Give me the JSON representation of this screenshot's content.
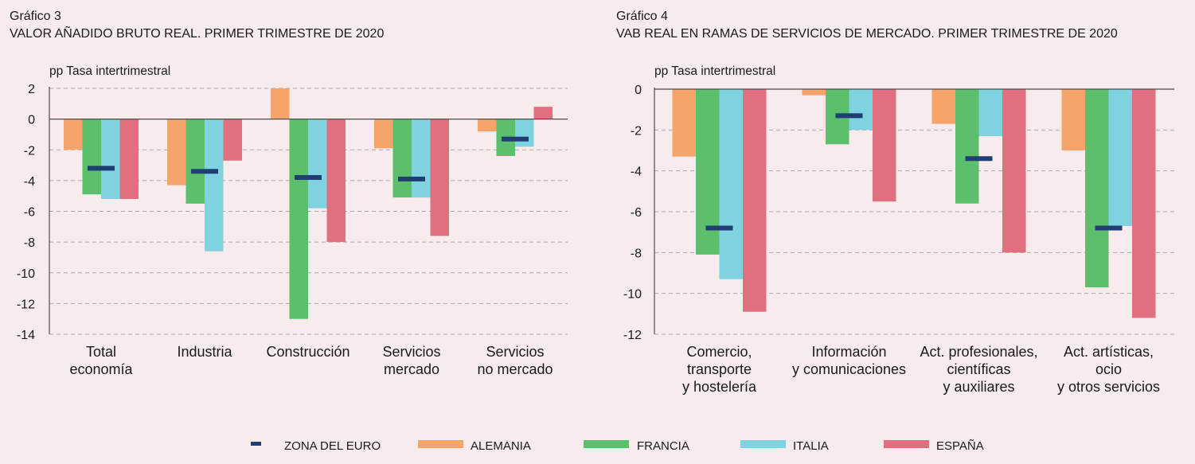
{
  "colors": {
    "zona_euro": "#1f3f73",
    "alemania": "#f7a46a",
    "francia": "#5cbf6c",
    "italia": "#7fd2df",
    "espana": "#e06f80",
    "grid": "#aaaaaa",
    "axis": "#4d4d4d"
  },
  "legend": {
    "items": [
      {
        "key": "zona_euro",
        "label": "ZONA DEL EURO",
        "kind": "marker"
      },
      {
        "key": "alemania",
        "label": "ALEMANIA",
        "kind": "bar"
      },
      {
        "key": "francia",
        "label": "FRANCIA",
        "kind": "bar"
      },
      {
        "key": "italia",
        "label": "ITALIA",
        "kind": "bar"
      },
      {
        "key": "espana",
        "label": "ESPAÑA",
        "kind": "bar"
      }
    ]
  },
  "chart_data": [
    {
      "type": "bar",
      "figure_label": "Gráfico 3",
      "title": "VALOR AÑADIDO BRUTO REAL. PRIMER TRIMESTRE DE 2020",
      "ylabel": "pp Tasa intertrimestral",
      "ylim": [
        -14,
        2
      ],
      "yticks": [
        2,
        0,
        -2,
        -4,
        -6,
        -8,
        -10,
        -12,
        -14
      ],
      "grid": true,
      "categories": [
        [
          "Total",
          "economía"
        ],
        [
          "Industria"
        ],
        [
          "Construcción"
        ],
        [
          "Servicios",
          "mercado"
        ],
        [
          "Servicios",
          "no mercado"
        ]
      ],
      "series": [
        {
          "name": "ALEMANIA",
          "key": "alemania",
          "values": [
            -2.0,
            -4.3,
            2.0,
            -1.9,
            -0.8
          ]
        },
        {
          "name": "FRANCIA",
          "key": "francia",
          "values": [
            -4.9,
            -5.5,
            -13.0,
            -5.1,
            -2.4
          ]
        },
        {
          "name": "ITALIA",
          "key": "italia",
          "values": [
            -5.2,
            -8.6,
            -5.8,
            -5.1,
            -1.8
          ]
        },
        {
          "name": "ESPAÑA",
          "key": "espana",
          "values": [
            -5.2,
            -2.7,
            -8.0,
            -7.6,
            0.8
          ]
        }
      ],
      "markers": {
        "name": "ZONA DEL EURO",
        "key": "zona_euro",
        "values": [
          -3.2,
          -3.4,
          -3.8,
          -3.9,
          -1.3
        ]
      }
    },
    {
      "type": "bar",
      "figure_label": "Gráfico 4",
      "title": "VAB REAL EN RAMAS DE SERVICIOS DE MERCADO. PRIMER TRIMESTRE DE 2020",
      "ylabel": "pp Tasa intertrimestral",
      "ylim": [
        -12,
        0
      ],
      "yticks": [
        0,
        -2,
        -4,
        -6,
        -8,
        -10,
        -12
      ],
      "grid": true,
      "categories": [
        [
          "Comercio,",
          "transporte",
          "y hostelería"
        ],
        [
          "Información",
          "y comunicaciones"
        ],
        [
          "Act. profesionales,",
          "científicas",
          "y auxiliares"
        ],
        [
          "Act. artísticas,",
          "ocio",
          "y otros servicios"
        ]
      ],
      "series": [
        {
          "name": "ALEMANIA",
          "key": "alemania",
          "values": [
            -3.3,
            -0.3,
            -1.7,
            -3.0
          ]
        },
        {
          "name": "FRANCIA",
          "key": "francia",
          "values": [
            -8.1,
            -2.7,
            -5.6,
            -9.7
          ]
        },
        {
          "name": "ITALIA",
          "key": "italia",
          "values": [
            -9.3,
            -2.0,
            -2.3,
            -6.7
          ]
        },
        {
          "name": "ESPAÑA",
          "key": "espana",
          "values": [
            -10.9,
            -5.5,
            -8.0,
            -11.2
          ]
        }
      ],
      "markers": {
        "name": "ZONA DEL EURO",
        "key": "zona_euro",
        "values": [
          -6.8,
          -1.3,
          -3.4,
          -6.8
        ]
      }
    }
  ]
}
